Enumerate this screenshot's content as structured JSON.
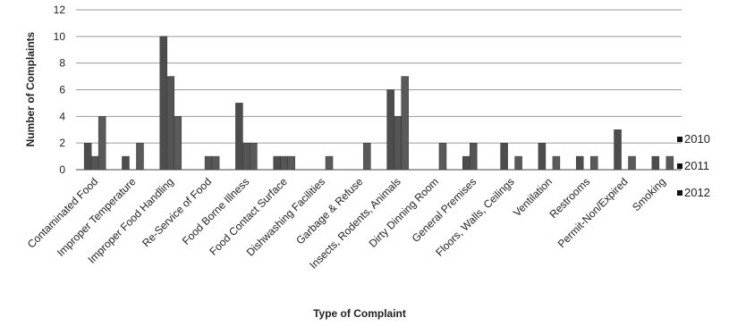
{
  "chart_data": {
    "type": "bar",
    "title": "",
    "xlabel": "Type of Complaint",
    "ylabel": "Number of Complaints",
    "ylim": [
      0,
      12
    ],
    "yticks": [
      0,
      2,
      4,
      6,
      8,
      10,
      12
    ],
    "grid": true,
    "legend": "right",
    "categories": [
      "Contaminated Food",
      "Improper Temperature",
      "Improper Food Handling",
      "Re-Service of Food",
      "Food Borne Illness",
      "Food Contact Surface",
      "Dishwashing Facilities",
      "Garbage & Refuse",
      "Insects, Rodents, Animals",
      "Dirty Dinning Room",
      "General Premises",
      "Floors, Walls, Ceilings",
      "Ventilation",
      "Restrooms",
      "Permit-Non/Expired",
      "Smoking"
    ],
    "series": [
      {
        "name": "2010",
        "color": "#4d4d4d",
        "values": [
          2,
          1,
          10,
          0,
          5,
          1,
          0,
          0,
          6,
          0,
          1,
          2,
          2,
          1,
          3,
          1
        ]
      },
      {
        "name": "2011",
        "color": "#555555",
        "values": [
          1,
          0,
          7,
          1,
          2,
          1,
          0,
          0,
          4,
          0,
          2,
          0,
          0,
          0,
          0,
          0
        ]
      },
      {
        "name": "2012",
        "color": "#5a5a5a",
        "values": [
          4,
          2,
          4,
          1,
          2,
          1,
          1,
          2,
          7,
          2,
          0,
          1,
          1,
          1,
          1,
          1
        ]
      }
    ]
  }
}
